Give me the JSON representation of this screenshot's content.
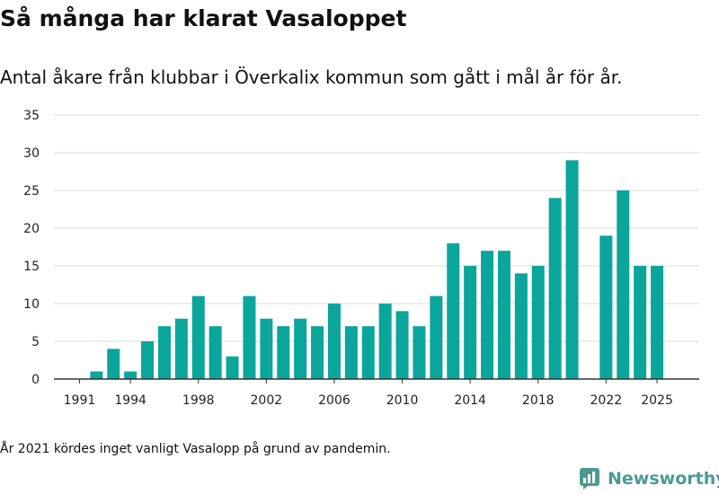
{
  "title": "Så många har klarat Vasaloppet",
  "subtitle": "Antal åkare från klubbar i Överkalix kommun som gått i mål år för år.",
  "footnote": "År 2021 kördes inget vanligt Vasalopp på grund av pandemin.",
  "brand": {
    "name": "Newsworthy",
    "logo_icon": "newsworthy-logo-icon"
  },
  "colors": {
    "bar": "#0aa59b",
    "grid": "#d9d9d9",
    "axis": "#333333",
    "text": "#222222",
    "brand": "#4a9a92"
  },
  "chart_data": {
    "type": "bar",
    "title": "Så många har klarat Vasaloppet",
    "xlabel": "",
    "ylabel": "",
    "ylim": [
      0,
      35
    ],
    "yticks": [
      0,
      5,
      10,
      15,
      20,
      25,
      30,
      35
    ],
    "xticks": [
      1991,
      1994,
      1998,
      2002,
      2006,
      2010,
      2014,
      2018,
      2022,
      2025
    ],
    "grid": true,
    "categories": [
      1991,
      1992,
      1993,
      1994,
      1995,
      1996,
      1997,
      1998,
      1999,
      2000,
      2001,
      2002,
      2003,
      2004,
      2005,
      2006,
      2007,
      2008,
      2009,
      2010,
      2011,
      2012,
      2013,
      2014,
      2015,
      2016,
      2017,
      2018,
      2019,
      2020,
      2021,
      2022,
      2023,
      2024,
      2025
    ],
    "values": [
      0,
      1,
      4,
      1,
      5,
      7,
      8,
      11,
      7,
      3,
      11,
      8,
      7,
      8,
      7,
      10,
      7,
      7,
      10,
      9,
      7,
      11,
      18,
      15,
      17,
      17,
      14,
      15,
      24,
      29,
      null,
      19,
      25,
      15,
      15
    ]
  }
}
